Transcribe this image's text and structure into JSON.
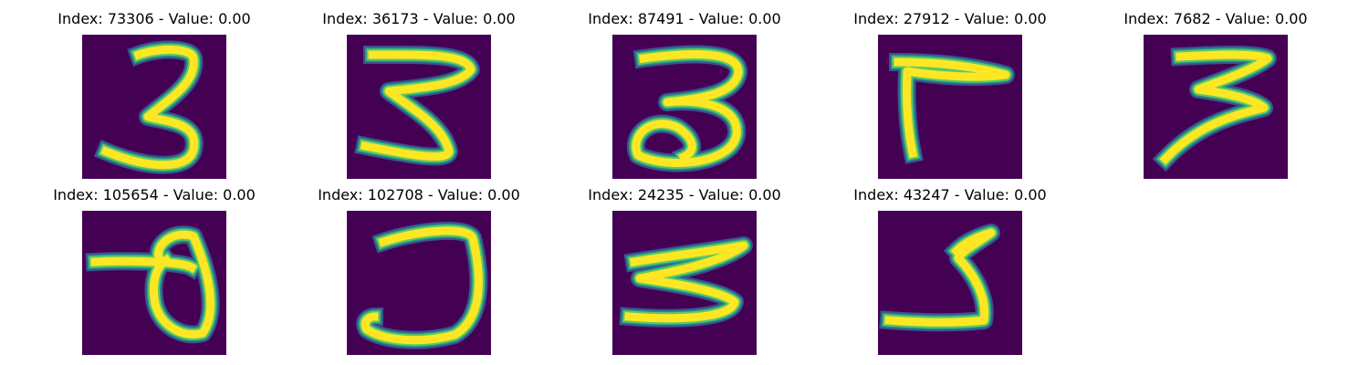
{
  "colors": {
    "background": "#440154",
    "stroke_core": "#fde725",
    "stroke_mid": "#5ec962",
    "stroke_edge": "#21918c",
    "stroke_faint": "#3b528b"
  },
  "panels": [
    {
      "title": "Index: 73306 - Value: 0.00",
      "glyph": "3"
    },
    {
      "title": "Index: 36173 - Value: 0.00",
      "glyph": "3"
    },
    {
      "title": "Index: 87491 - Value: 0.00",
      "glyph": "3"
    },
    {
      "title": "Index: 27912 - Value: 0.00",
      "glyph": "7"
    },
    {
      "title": "Index: 7682 - Value: 0.00",
      "glyph": "3"
    },
    {
      "title": "Index: 105654 - Value: 0.00",
      "glyph": "0"
    },
    {
      "title": "Index: 102708 - Value: 0.00",
      "glyph": "3"
    },
    {
      "title": "Index: 24235 - Value: 0.00",
      "glyph": "3"
    },
    {
      "title": "Index: 43247 - Value: 0.00",
      "glyph": "3"
    }
  ]
}
